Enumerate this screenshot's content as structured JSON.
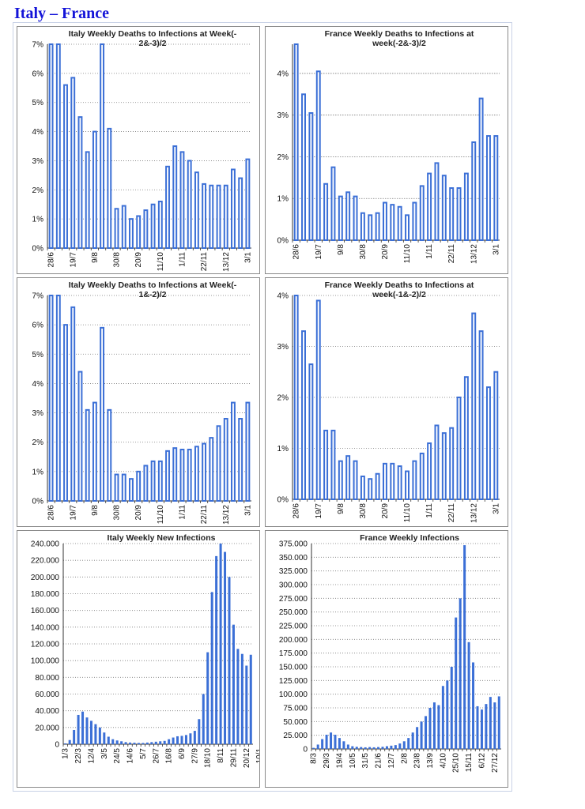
{
  "page": {
    "title": "Italy – France"
  },
  "colors": {
    "bar": "#3b6fd6",
    "bar_fill_outline": "#ffffff",
    "grid": "#777777",
    "title": "#1414d8"
  },
  "chart_data": [
    {
      "id": "it_dr_3",
      "type": "bar",
      "style": "outline",
      "title_lines": [
        "Italy Weekly Deaths to Infections at Week(-",
        "2&-3)/2"
      ],
      "ylim": [
        0,
        7
      ],
      "yticks": [
        0,
        1,
        2,
        3,
        4,
        5,
        6,
        7
      ],
      "ytick_labels": [
        "0%",
        "1%",
        "2%",
        "3%",
        "4%",
        "5%",
        "6%",
        "7%"
      ],
      "grid": "dotted",
      "xtick_labels": [
        {
          "i": 0,
          "text": "28/6"
        },
        {
          "i": 3,
          "text": "19/7"
        },
        {
          "i": 6,
          "text": "9/8"
        },
        {
          "i": 9,
          "text": "30/8"
        },
        {
          "i": 12,
          "text": "20/9"
        },
        {
          "i": 15,
          "text": "11/10"
        },
        {
          "i": 18,
          "text": "1/11"
        },
        {
          "i": 21,
          "text": "22/11"
        },
        {
          "i": 24,
          "text": "13/12"
        },
        {
          "i": 27,
          "text": "3/1"
        }
      ],
      "values": [
        7.0,
        7.0,
        5.6,
        5.85,
        4.5,
        3.3,
        4.0,
        7.0,
        4.1,
        1.35,
        1.45,
        1.0,
        1.1,
        1.3,
        1.5,
        1.6,
        2.8,
        3.5,
        3.3,
        3.0,
        2.6,
        2.2,
        2.15,
        2.15,
        2.15,
        2.7,
        2.4,
        3.05
      ]
    },
    {
      "id": "fr_dr_3",
      "type": "bar",
      "style": "outline",
      "title_lines": [
        "France Weekly Deaths to Infections at",
        "week(-2&-3)/2"
      ],
      "ylim": [
        0,
        4.7
      ],
      "yticks": [
        0,
        1,
        2,
        3,
        4
      ],
      "ytick_labels": [
        "0%",
        "1%",
        "2%",
        "3%",
        "4%"
      ],
      "grid": "dotted",
      "xtick_labels": [
        {
          "i": 0,
          "text": "28/6"
        },
        {
          "i": 3,
          "text": "19/7"
        },
        {
          "i": 6,
          "text": "9/8"
        },
        {
          "i": 9,
          "text": "30/8"
        },
        {
          "i": 12,
          "text": "20/9"
        },
        {
          "i": 15,
          "text": "11/10"
        },
        {
          "i": 18,
          "text": "1/11"
        },
        {
          "i": 21,
          "text": "22/11"
        },
        {
          "i": 24,
          "text": "13/12"
        },
        {
          "i": 27,
          "text": "3/1"
        }
      ],
      "values": [
        4.7,
        3.5,
        3.05,
        4.05,
        1.35,
        1.75,
        1.05,
        1.15,
        1.05,
        0.65,
        0.6,
        0.65,
        0.9,
        0.85,
        0.8,
        0.6,
        0.9,
        1.3,
        1.6,
        1.85,
        1.55,
        1.25,
        1.25,
        1.6,
        2.35,
        3.4,
        2.5,
        2.5
      ]
    },
    {
      "id": "it_dr_2",
      "type": "bar",
      "style": "outline",
      "title_lines": [
        "Italy Weekly Deaths to Infections at Week(-",
        "1&-2)/2"
      ],
      "ylim": [
        0,
        7
      ],
      "yticks": [
        0,
        1,
        2,
        3,
        4,
        5,
        6,
        7
      ],
      "ytick_labels": [
        "0%",
        "1%",
        "2%",
        "3%",
        "4%",
        "5%",
        "6%",
        "7%"
      ],
      "grid": "dotted",
      "xtick_labels": [
        {
          "i": 0,
          "text": "28/6"
        },
        {
          "i": 3,
          "text": "19/7"
        },
        {
          "i": 6,
          "text": "9/8"
        },
        {
          "i": 9,
          "text": "30/8"
        },
        {
          "i": 12,
          "text": "20/9"
        },
        {
          "i": 15,
          "text": "11/10"
        },
        {
          "i": 18,
          "text": "1/11"
        },
        {
          "i": 21,
          "text": "22/11"
        },
        {
          "i": 24,
          "text": "13/12"
        },
        {
          "i": 27,
          "text": "3/1"
        }
      ],
      "values": [
        7.0,
        7.0,
        6.0,
        6.6,
        4.4,
        3.1,
        3.35,
        5.9,
        3.1,
        0.9,
        0.9,
        0.75,
        1.0,
        1.2,
        1.35,
        1.35,
        1.7,
        1.8,
        1.75,
        1.75,
        1.85,
        1.95,
        2.15,
        2.55,
        2.8,
        3.35,
        2.8,
        3.35
      ]
    },
    {
      "id": "fr_dr_2",
      "type": "bar",
      "style": "outline",
      "title_lines": [
        "France Weekly Deaths to Infections at",
        "week(-1&-2)/2"
      ],
      "ylim": [
        0,
        4
      ],
      "yticks": [
        0,
        1,
        2,
        3,
        4
      ],
      "ytick_labels": [
        "0%",
        "1%",
        "2%",
        "3%",
        "4%"
      ],
      "grid": "dotted",
      "xtick_labels": [
        {
          "i": 0,
          "text": "28/6"
        },
        {
          "i": 3,
          "text": "19/7"
        },
        {
          "i": 6,
          "text": "9/8"
        },
        {
          "i": 9,
          "text": "30/8"
        },
        {
          "i": 12,
          "text": "20/9"
        },
        {
          "i": 15,
          "text": "11/10"
        },
        {
          "i": 18,
          "text": "1/11"
        },
        {
          "i": 21,
          "text": "22/11"
        },
        {
          "i": 24,
          "text": "13/12"
        },
        {
          "i": 27,
          "text": "3/1"
        }
      ],
      "values": [
        4.0,
        3.3,
        2.65,
        3.9,
        1.35,
        1.35,
        0.75,
        0.85,
        0.75,
        0.45,
        0.4,
        0.5,
        0.7,
        0.7,
        0.65,
        0.55,
        0.75,
        0.9,
        1.1,
        1.45,
        1.3,
        1.4,
        2.0,
        2.4,
        3.65,
        3.3,
        2.2,
        2.5
      ]
    },
    {
      "id": "it_inf",
      "type": "bar",
      "style": "solid",
      "title_lines": [
        "Italy  Weekly New Infections"
      ],
      "ylim": [
        0,
        240000
      ],
      "yticks": [
        0,
        20000,
        40000,
        60000,
        80000,
        100000,
        120000,
        140000,
        160000,
        180000,
        200000,
        220000,
        240000
      ],
      "ytick_labels": [
        "0",
        "20.000",
        "40.000",
        "60.000",
        "80.000",
        "100.000",
        "120.000",
        "140.000",
        "160.000",
        "180.000",
        "200.000",
        "220.000",
        "240.000"
      ],
      "grid": "dotted",
      "xtick_labels": [
        {
          "i": 0,
          "text": "1/3"
        },
        {
          "i": 3,
          "text": "22/3"
        },
        {
          "i": 6,
          "text": "12/4"
        },
        {
          "i": 9,
          "text": "3/5"
        },
        {
          "i": 12,
          "text": "24/5"
        },
        {
          "i": 15,
          "text": "14/6"
        },
        {
          "i": 18,
          "text": "5/7"
        },
        {
          "i": 21,
          "text": "26/7"
        },
        {
          "i": 24,
          "text": "16/8"
        },
        {
          "i": 27,
          "text": "6/9"
        },
        {
          "i": 30,
          "text": "27/9"
        },
        {
          "i": 33,
          "text": "18/10"
        },
        {
          "i": 36,
          "text": "8/11"
        },
        {
          "i": 39,
          "text": "29/11"
        },
        {
          "i": 42,
          "text": "20/12"
        },
        {
          "i": 45,
          "text": "10/1"
        }
      ],
      "values": [
        1000,
        5000,
        17000,
        35000,
        39000,
        32000,
        28000,
        24000,
        20000,
        14000,
        9000,
        6000,
        4500,
        3500,
        2500,
        2000,
        1800,
        1500,
        1500,
        2000,
        2500,
        3000,
        3500,
        4000,
        6000,
        8000,
        9500,
        10000,
        11000,
        13000,
        16000,
        30000,
        60000,
        110000,
        182000,
        225000,
        243000,
        230000,
        200000,
        143000,
        114000,
        108000,
        94000,
        107000
      ]
    },
    {
      "id": "fr_inf",
      "type": "bar",
      "style": "solid",
      "title_lines": [
        "France Weekly Infections"
      ],
      "ylim": [
        0,
        375000
      ],
      "yticks": [
        0,
        25000,
        50000,
        75000,
        100000,
        125000,
        150000,
        175000,
        200000,
        225000,
        250000,
        275000,
        300000,
        325000,
        350000,
        375000
      ],
      "ytick_labels": [
        "0",
        "25.000",
        "50.000",
        "75.000",
        "100.000",
        "125.000",
        "150.000",
        "175.000",
        "200.000",
        "225.000",
        "250.000",
        "275.000",
        "300.000",
        "325.000",
        "350.000",
        "375.000"
      ],
      "grid": "dotted",
      "xtick_labels": [
        {
          "i": 0,
          "text": "8/3"
        },
        {
          "i": 3,
          "text": "29/3"
        },
        {
          "i": 6,
          "text": "19/4"
        },
        {
          "i": 9,
          "text": "10/5"
        },
        {
          "i": 12,
          "text": "31/5"
        },
        {
          "i": 15,
          "text": "21/6"
        },
        {
          "i": 18,
          "text": "12/7"
        },
        {
          "i": 21,
          "text": "2/8"
        },
        {
          "i": 24,
          "text": "23/8"
        },
        {
          "i": 27,
          "text": "13/9"
        },
        {
          "i": 30,
          "text": "4/10"
        },
        {
          "i": 33,
          "text": "25/10"
        },
        {
          "i": 36,
          "text": "15/11"
        },
        {
          "i": 39,
          "text": "6/12"
        },
        {
          "i": 42,
          "text": "27/12"
        }
      ],
      "values": [
        2000,
        8000,
        18000,
        26000,
        30000,
        26000,
        20000,
        14000,
        8000,
        5000,
        4000,
        3500,
        3000,
        3500,
        3000,
        3500,
        4000,
        5000,
        6000,
        7000,
        10000,
        14000,
        20000,
        30000,
        40000,
        50000,
        60000,
        75000,
        85000,
        80000,
        115000,
        125000,
        150000,
        240000,
        275000,
        372000,
        195000,
        158000,
        78000,
        72000,
        82000,
        95000,
        85000,
        96000
      ]
    }
  ]
}
